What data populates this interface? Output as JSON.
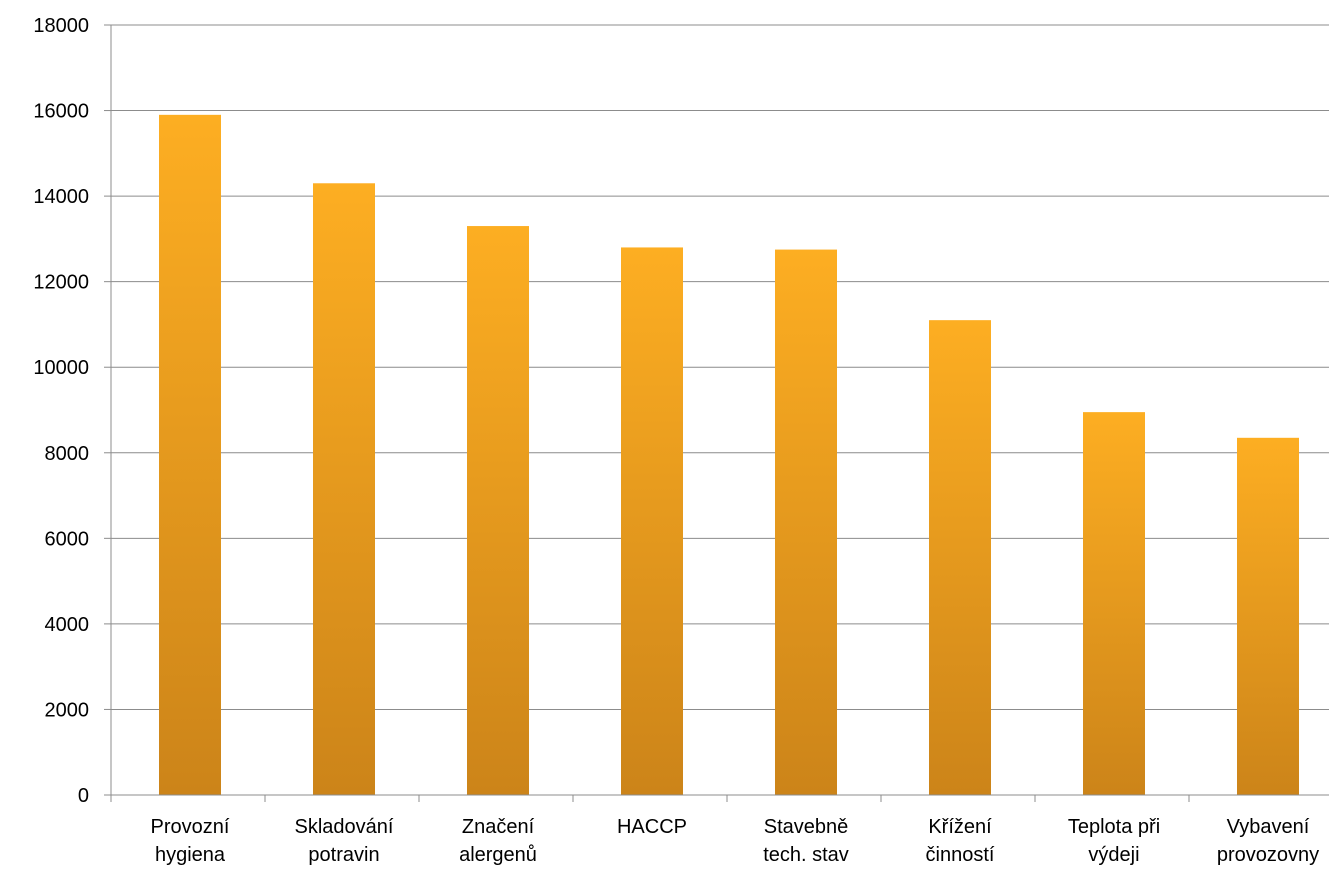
{
  "chart_data": {
    "type": "bar",
    "title": "",
    "xlabel": "",
    "ylabel": "",
    "ylim": [
      0,
      18000
    ],
    "yticks": [
      0,
      2000,
      4000,
      6000,
      8000,
      10000,
      12000,
      14000,
      16000,
      18000
    ],
    "grid": true,
    "legend": "none",
    "categories": [
      [
        "Provozní",
        "hygiena"
      ],
      [
        "Skladování",
        "potravin"
      ],
      [
        "Značení",
        "alergenů"
      ],
      [
        "HACCP"
      ],
      [
        "Stavebně",
        "tech. stav"
      ],
      [
        "Křížení",
        "činností"
      ],
      [
        "Teplota při",
        "výdeji"
      ],
      [
        "Vybavení",
        "provozovny"
      ]
    ],
    "values": [
      15900,
      14300,
      13300,
      12800,
      12750,
      11100,
      8950,
      8350
    ],
    "colors": {
      "bar_top": "#FDAE22",
      "bar_bottom": "#CC8419",
      "grid": "#8C8C8C",
      "axis": "#8C8C8C"
    }
  }
}
